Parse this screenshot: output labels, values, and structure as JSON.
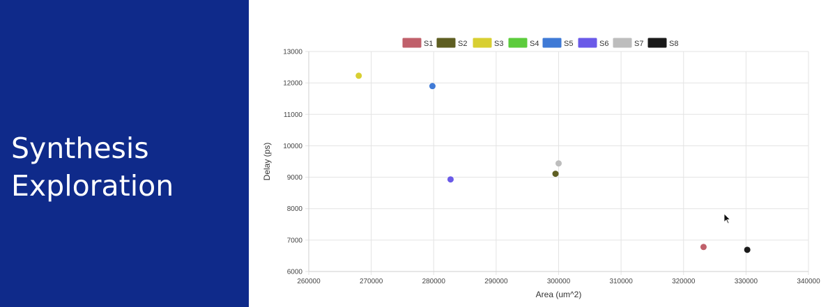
{
  "slide": {
    "title_line1": "Synthesis",
    "title_line2": "Exploration",
    "panel_color": "#0f2a8a"
  },
  "chart_data": {
    "type": "scatter",
    "title": "",
    "xlabel": "Area (um^2)",
    "ylabel": "Delay (ps)",
    "xlim": [
      260000,
      340000
    ],
    "ylim": [
      6000,
      13000
    ],
    "x_ticks": [
      260000,
      270000,
      280000,
      290000,
      300000,
      310000,
      320000,
      330000,
      340000
    ],
    "y_ticks": [
      6000,
      7000,
      8000,
      9000,
      10000,
      11000,
      12000,
      13000
    ],
    "grid": true,
    "legend_position": "top-center",
    "series": [
      {
        "name": "S1",
        "color": "#c0606b",
        "points": [
          [
            323200,
            6780
          ]
        ]
      },
      {
        "name": "S2",
        "color": "#5e5e22",
        "points": [
          [
            299500,
            9110
          ]
        ]
      },
      {
        "name": "S3",
        "color": "#d8cf32",
        "points": [
          [
            268000,
            12230
          ]
        ]
      },
      {
        "name": "S4",
        "color": "#5ccc3c",
        "points": []
      },
      {
        "name": "S5",
        "color": "#3f7ad6",
        "points": [
          [
            279800,
            11900
          ]
        ]
      },
      {
        "name": "S6",
        "color": "#6a5ae8",
        "points": [
          [
            282700,
            8930
          ]
        ]
      },
      {
        "name": "S7",
        "color": "#bdbdbd",
        "points": [
          [
            300000,
            9440
          ]
        ]
      },
      {
        "name": "S8",
        "color": "#1a1a1a",
        "points": [
          [
            330200,
            6690
          ]
        ]
      }
    ]
  }
}
